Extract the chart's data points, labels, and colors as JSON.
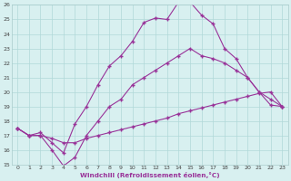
{
  "xlabel": "Windchill (Refroidissement éolien,°C)",
  "bg_color": "#d8f0f0",
  "line_color": "#993399",
  "grid_color": "#b0d8d8",
  "xlim": [
    -0.5,
    23.5
  ],
  "ylim": [
    15,
    26
  ],
  "yticks": [
    15,
    16,
    17,
    18,
    19,
    20,
    21,
    22,
    23,
    24,
    25,
    26
  ],
  "xticks": [
    0,
    1,
    2,
    3,
    4,
    5,
    6,
    7,
    8,
    9,
    10,
    11,
    12,
    13,
    14,
    15,
    16,
    17,
    18,
    19,
    20,
    21,
    22,
    23
  ],
  "series": [
    {
      "x": [
        0,
        1,
        2,
        3,
        4,
        5,
        6,
        7,
        8,
        9,
        10,
        11,
        12,
        13,
        14,
        15,
        16,
        17,
        18,
        19,
        20,
        21,
        22,
        23
      ],
      "y": [
        17.5,
        17.0,
        17.2,
        16.5,
        15.8,
        17.8,
        19.0,
        20.5,
        21.8,
        22.5,
        23.5,
        24.8,
        25.1,
        25.0,
        26.2,
        26.2,
        25.3,
        24.7,
        23.0,
        22.3,
        21.0,
        20.0,
        19.1,
        19.0
      ]
    },
    {
      "x": [
        0,
        1,
        2,
        3,
        4,
        5,
        6,
        7,
        8,
        9,
        10,
        11,
        12,
        13,
        14,
        15,
        16,
        17,
        18,
        19,
        20,
        21,
        22,
        23
      ],
      "y": [
        17.5,
        17.0,
        17.0,
        16.0,
        14.9,
        15.5,
        17.0,
        18.0,
        19.0,
        19.5,
        20.5,
        21.0,
        21.5,
        22.0,
        22.5,
        23.0,
        22.5,
        22.3,
        22.0,
        21.5,
        21.0,
        20.0,
        19.5,
        19.0
      ]
    },
    {
      "x": [
        0,
        1,
        2,
        3,
        4,
        5,
        6,
        7,
        8,
        9,
        10,
        11,
        12,
        13,
        14,
        15,
        16,
        17,
        18,
        19,
        20,
        21,
        22,
        23
      ],
      "y": [
        17.5,
        17.0,
        17.0,
        16.8,
        16.5,
        16.5,
        16.8,
        17.0,
        17.2,
        17.4,
        17.6,
        17.8,
        18.0,
        18.2,
        18.5,
        18.7,
        18.9,
        19.1,
        19.3,
        19.5,
        19.7,
        19.9,
        20.0,
        19.0
      ]
    }
  ]
}
